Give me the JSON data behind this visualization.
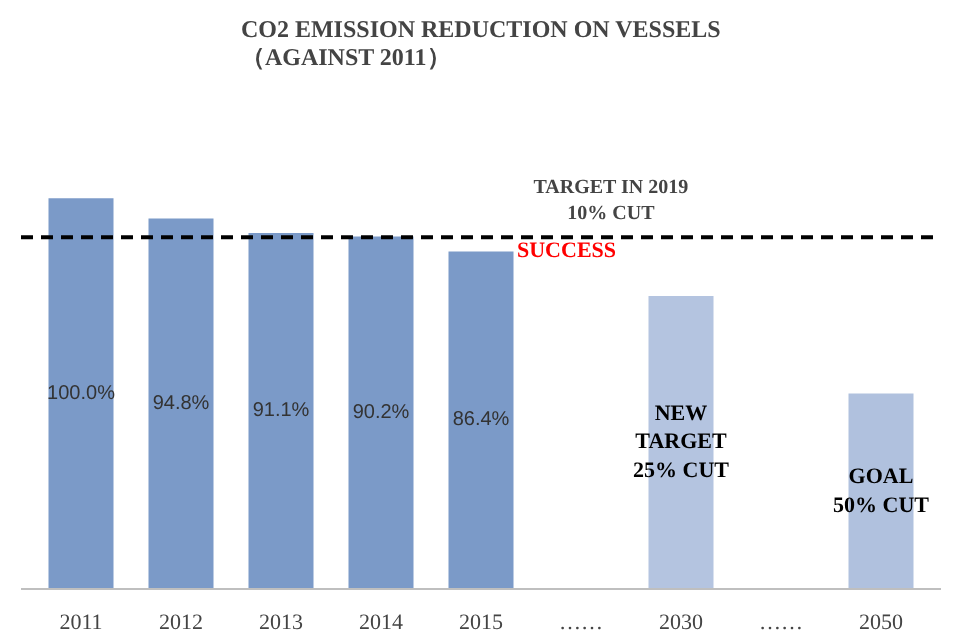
{
  "chart_data": {
    "type": "bar",
    "title": "CO2 EMISSION REDUCTION ON VESSELS\n（AGAINST 2011）",
    "categories": [
      "2011",
      "2012",
      "2013",
      "2014",
      "2015",
      "……",
      "2030",
      "……",
      "2050"
    ],
    "values": [
      100.0,
      94.8,
      91.1,
      90.2,
      86.4,
      null,
      75,
      null,
      50
    ],
    "colors": [
      "#7b9ac8",
      "#7b9ac8",
      "#7b9ac8",
      "#7b9ac8",
      "#7b9ac8",
      null,
      "#b4c4e0",
      null,
      "#b0c1de"
    ],
    "value_labels": [
      "100.0%",
      "94.8%",
      "91.1%",
      "90.2%",
      "86.4%",
      null,
      "NEW\nTARGET\n25% CUT",
      null,
      "GOAL\n50% CUT"
    ],
    "ref_lines": [
      {
        "axis": "y",
        "value": 90,
        "label": "TARGET IN 2019\n10% CUT",
        "color": "#000000",
        "line_style": "dashed"
      }
    ],
    "annotations": [
      {
        "text": "SUCCESS",
        "x": "2015",
        "y": 86.4
      }
    ],
    "grid": false
  }
}
